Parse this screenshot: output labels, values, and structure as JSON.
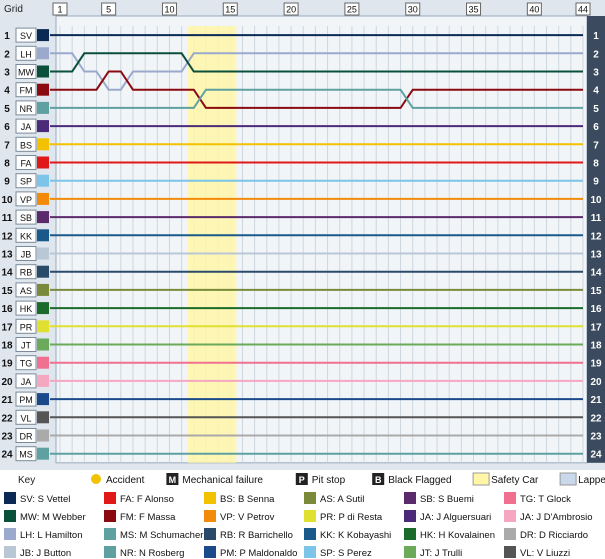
{
  "chart_data": {
    "type": "line",
    "description": "Lap chart: driver race position (1 = leader) by lap",
    "grid_header": "Grid",
    "key_label": "Key",
    "laps_total": 44,
    "lap_ticks": [
      1,
      5,
      10,
      15,
      20,
      25,
      30,
      35,
      40,
      44
    ],
    "positions": [
      1,
      2,
      3,
      4,
      5,
      6,
      7,
      8,
      9,
      10,
      11,
      12,
      13,
      14,
      15,
      16,
      17,
      18,
      19,
      20,
      21,
      22,
      23,
      24
    ],
    "safety_car_laps": [
      12,
      15
    ],
    "legend_items": [
      {
        "symbol": "sun",
        "label": "Accident"
      },
      {
        "symbol": "M",
        "label": "Mechanical failure"
      },
      {
        "symbol": "P",
        "label": "Pit stop"
      },
      {
        "symbol": "B",
        "label": "Black Flagged"
      },
      {
        "symbol": "safety",
        "label": "Safety Car"
      },
      {
        "symbol": "lapped",
        "label": "Lapped"
      }
    ],
    "drivers": [
      {
        "code": "SV",
        "name": "SV: S Vettel",
        "color": "#0a2a55",
        "grid": 1,
        "positions": [
          1,
          1,
          1,
          1,
          1,
          1,
          1,
          1,
          1,
          1,
          1,
          1,
          1,
          1,
          1,
          1,
          1,
          1,
          1,
          1,
          1,
          1,
          1,
          1,
          1,
          1,
          1,
          1,
          1,
          1,
          1,
          1,
          1,
          1,
          1,
          1,
          1,
          1,
          1,
          1,
          1,
          1,
          1,
          1
        ]
      },
      {
        "code": "LH",
        "name": "LH: L Hamilton",
        "color": "#9aa9cc",
        "grid": 2,
        "positions": [
          2,
          2,
          3,
          3,
          4,
          4,
          3,
          3,
          3,
          3,
          3,
          2,
          2,
          2,
          2,
          2,
          2,
          2,
          2,
          2,
          2,
          2,
          2,
          2,
          2,
          2,
          2,
          2,
          2,
          2,
          2,
          2,
          2,
          2,
          2,
          2,
          2,
          2,
          2,
          2,
          2,
          2,
          2,
          2
        ]
      },
      {
        "code": "MW",
        "name": "MW: M Webber",
        "color": "#0a4f3a",
        "grid": 3,
        "positions": [
          3,
          3,
          2,
          2,
          2,
          2,
          2,
          2,
          2,
          2,
          2,
          3,
          3,
          3,
          3,
          3,
          3,
          3,
          3,
          3,
          3,
          3,
          3,
          3,
          3,
          3,
          3,
          3,
          3,
          3,
          3,
          3,
          3,
          3,
          3,
          3,
          3,
          3,
          3,
          3,
          3,
          3,
          3,
          3
        ]
      },
      {
        "code": "FM",
        "name": "FM: F Massa",
        "color": "#8a0a10",
        "grid": 4,
        "positions": [
          4,
          4,
          4,
          4,
          3,
          3,
          4,
          4,
          4,
          4,
          4,
          4,
          5,
          5,
          5,
          5,
          5,
          5,
          5,
          5,
          5,
          5,
          5,
          5,
          5,
          5,
          5,
          5,
          5,
          4,
          4,
          4,
          4,
          4,
          4,
          4,
          4,
          4,
          4,
          4,
          4,
          4,
          4,
          4
        ]
      },
      {
        "code": "NR",
        "name": "NR: N Rosberg",
        "color": "#5fa0a0",
        "grid": 5,
        "positions": [
          5,
          5,
          5,
          5,
          5,
          5,
          5,
          5,
          5,
          5,
          5,
          5,
          4,
          4,
          4,
          4,
          4,
          4,
          4,
          4,
          4,
          4,
          4,
          4,
          4,
          4,
          4,
          4,
          4,
          5,
          5,
          5,
          5,
          5,
          5,
          5,
          5,
          5,
          5,
          5,
          5,
          5,
          5,
          5
        ]
      },
      {
        "code": "JA",
        "name": "JA: J Alguersuari",
        "color": "#4b2a7a",
        "grid": 6,
        "positions": [
          6,
          6,
          6,
          6,
          6,
          6,
          6,
          6,
          6,
          6,
          6,
          6,
          6,
          6,
          6,
          6,
          6,
          6,
          6,
          6,
          6,
          6,
          6,
          6,
          6,
          6,
          6,
          6,
          6,
          6,
          6,
          6,
          6,
          6,
          6,
          6,
          6,
          6,
          6,
          6,
          6,
          6,
          6,
          6
        ]
      },
      {
        "code": "BS",
        "name": "BS: B Senna",
        "color": "#f2c200",
        "grid": 7,
        "positions": [
          7,
          7,
          7,
          7,
          7,
          7,
          7,
          7,
          7,
          7,
          7,
          7,
          7,
          7,
          7,
          7,
          7,
          7,
          7,
          7,
          7,
          7,
          7,
          7,
          7,
          7,
          7,
          7,
          7,
          7,
          7,
          7,
          7,
          7,
          7,
          7,
          7,
          7,
          7,
          7,
          7,
          7,
          7,
          7
        ]
      },
      {
        "code": "FA",
        "name": "FA: F Alonso",
        "color": "#e01818",
        "grid": 8,
        "positions": [
          8,
          8,
          8,
          8,
          8,
          8,
          8,
          8,
          8,
          8,
          8,
          8,
          8,
          8,
          8,
          8,
          8,
          8,
          8,
          8,
          8,
          8,
          8,
          8,
          8,
          8,
          8,
          8,
          8,
          8,
          8,
          8,
          8,
          8,
          8,
          8,
          8,
          8,
          8,
          8,
          8,
          8,
          8,
          8
        ]
      },
      {
        "code": "SP",
        "name": "SP: S Perez",
        "color": "#7cc4e8",
        "grid": 9,
        "positions": [
          9,
          9,
          9,
          9,
          9,
          9,
          9,
          9,
          9,
          9,
          9,
          9,
          9,
          9,
          9,
          9,
          9,
          9,
          9,
          9,
          9,
          9,
          9,
          9,
          9,
          9,
          9,
          9,
          9,
          9,
          9,
          9,
          9,
          9,
          9,
          9,
          9,
          9,
          9,
          9,
          9,
          9,
          9,
          9
        ]
      },
      {
        "code": "VP",
        "name": "VP: V Petrov",
        "color": "#f28a0a",
        "grid": 10,
        "positions": [
          10,
          10,
          10,
          10,
          10,
          10,
          10,
          10,
          10,
          10,
          10,
          10,
          10,
          10,
          10,
          10,
          10,
          10,
          10,
          10,
          10,
          10,
          10,
          10,
          10,
          10,
          10,
          10,
          10,
          10,
          10,
          10,
          10,
          10,
          10,
          10,
          10,
          10,
          10,
          10,
          10,
          10,
          10,
          10
        ]
      },
      {
        "code": "SB",
        "name": "SB: S Buemi",
        "color": "#5a2a6a",
        "grid": 11,
        "positions": [
          11,
          11,
          11,
          11,
          11,
          11,
          11,
          11,
          11,
          11,
          11,
          11,
          11,
          11,
          11,
          11,
          11,
          11,
          11,
          11,
          11,
          11,
          11,
          11,
          11,
          11,
          11,
          11,
          11,
          11,
          11,
          11,
          11,
          11,
          11,
          11,
          11,
          11,
          11,
          11,
          11,
          11,
          11,
          11
        ]
      },
      {
        "code": "KK",
        "name": "KK: K Kobayashi",
        "color": "#1a5a8a",
        "grid": 12,
        "positions": [
          12,
          12,
          12,
          12,
          12,
          12,
          12,
          12,
          12,
          12,
          12,
          12,
          12,
          12,
          12,
          12,
          12,
          12,
          12,
          12,
          12,
          12,
          12,
          12,
          12,
          12,
          12,
          12,
          12,
          12,
          12,
          12,
          12,
          12,
          12,
          12,
          12,
          12,
          12,
          12,
          12,
          12,
          12,
          12
        ]
      },
      {
        "code": "JB",
        "name": "JB: J Button",
        "color": "#b9c7d6",
        "grid": 13,
        "positions": [
          13,
          13,
          13,
          13,
          13,
          13,
          13,
          13,
          13,
          13,
          13,
          13,
          13,
          13,
          13,
          13,
          13,
          13,
          13,
          13,
          13,
          13,
          13,
          13,
          13,
          13,
          13,
          13,
          13,
          13,
          13,
          13,
          13,
          13,
          13,
          13,
          13,
          13,
          13,
          13,
          13,
          13,
          13,
          13
        ]
      },
      {
        "code": "RB",
        "name": "RB: R Barrichello",
        "color": "#2a4a6a",
        "grid": 14,
        "positions": [
          14,
          14,
          14,
          14,
          14,
          14,
          14,
          14,
          14,
          14,
          14,
          14,
          14,
          14,
          14,
          14,
          14,
          14,
          14,
          14,
          14,
          14,
          14,
          14,
          14,
          14,
          14,
          14,
          14,
          14,
          14,
          14,
          14,
          14,
          14,
          14,
          14,
          14,
          14,
          14,
          14,
          14,
          14,
          14
        ]
      },
      {
        "code": "AS",
        "name": "AS: A Sutil",
        "color": "#7a8a3a",
        "grid": 15,
        "positions": [
          15,
          15,
          15,
          15,
          15,
          15,
          15,
          15,
          15,
          15,
          15,
          15,
          15,
          15,
          15,
          15,
          15,
          15,
          15,
          15,
          15,
          15,
          15,
          15,
          15,
          15,
          15,
          15,
          15,
          15,
          15,
          15,
          15,
          15,
          15,
          15,
          15,
          15,
          15,
          15,
          15,
          15,
          15,
          15
        ]
      },
      {
        "code": "HK",
        "name": "HK: H Kovalainen",
        "color": "#1a6a2a",
        "grid": 16,
        "positions": [
          16,
          16,
          16,
          16,
          16,
          16,
          16,
          16,
          16,
          16,
          16,
          16,
          16,
          16,
          16,
          16,
          16,
          16,
          16,
          16,
          16,
          16,
          16,
          16,
          16,
          16,
          16,
          16,
          16,
          16,
          16,
          16,
          16,
          16,
          16,
          16,
          16,
          16,
          16,
          16,
          16,
          16,
          16,
          16
        ]
      },
      {
        "code": "PR",
        "name": "PR: P di Resta",
        "color": "#e0e030",
        "grid": 17,
        "positions": [
          17,
          17,
          17,
          17,
          17,
          17,
          17,
          17,
          17,
          17,
          17,
          17,
          17,
          17,
          17,
          17,
          17,
          17,
          17,
          17,
          17,
          17,
          17,
          17,
          17,
          17,
          17,
          17,
          17,
          17,
          17,
          17,
          17,
          17,
          17,
          17,
          17,
          17,
          17,
          17,
          17,
          17,
          17,
          17
        ]
      },
      {
        "code": "JT",
        "name": "JT: J Trulli",
        "color": "#6aaa5a",
        "grid": 18,
        "positions": [
          18,
          18,
          18,
          18,
          18,
          18,
          18,
          18,
          18,
          18,
          18,
          18,
          18,
          18,
          18,
          18,
          18,
          18,
          18,
          18,
          18,
          18,
          18,
          18,
          18,
          18,
          18,
          18,
          18,
          18,
          18,
          18,
          18,
          18,
          18,
          18,
          18,
          18,
          18,
          18,
          18,
          18,
          18,
          18
        ]
      },
      {
        "code": "TG",
        "name": "TG: T Glock",
        "color": "#f07090",
        "grid": 19,
        "positions": [
          19,
          19,
          19,
          19,
          19,
          19,
          19,
          19,
          19,
          19,
          19,
          19,
          19,
          19,
          19,
          19,
          19,
          19,
          19,
          19,
          19,
          19,
          19,
          19,
          19,
          19,
          19,
          19,
          19,
          19,
          19,
          19,
          19,
          19,
          19,
          19,
          19,
          19,
          19,
          19,
          19,
          19,
          19,
          19
        ]
      },
      {
        "code": "JA2",
        "name": "JA: J D'Ambrosio",
        "color": "#f5a6c0",
        "grid": 20,
        "positions": [
          20,
          20,
          20,
          20,
          20,
          20,
          20,
          20,
          20,
          20,
          20,
          20,
          20,
          20,
          20,
          20,
          20,
          20,
          20,
          20,
          20,
          20,
          20,
          20,
          20,
          20,
          20,
          20,
          20,
          20,
          20,
          20,
          20,
          20,
          20,
          20,
          20,
          20,
          20,
          20,
          20,
          20,
          20,
          20
        ]
      },
      {
        "code": "PM",
        "name": "PM: P Maldonaldo",
        "color": "#1a4a8a",
        "grid": 21,
        "positions": [
          21,
          21,
          21,
          21,
          21,
          21,
          21,
          21,
          21,
          21,
          21,
          21,
          21,
          21,
          21,
          21,
          21,
          21,
          21,
          21,
          21,
          21,
          21,
          21,
          21,
          21,
          21,
          21,
          21,
          21,
          21,
          21,
          21,
          21,
          21,
          21,
          21,
          21,
          21,
          21,
          21,
          21,
          21,
          21
        ]
      },
      {
        "code": "VL",
        "name": "VL: V Liuzzi",
        "color": "#555555",
        "grid": 22,
        "positions": [
          22,
          22,
          22,
          22,
          22,
          22,
          22,
          22,
          22,
          22,
          22,
          22,
          22,
          22,
          22,
          22,
          22,
          22,
          22,
          22,
          22,
          22,
          22,
          22,
          22,
          22,
          22,
          22,
          22,
          22,
          22,
          22,
          22,
          22,
          22,
          22,
          22,
          22,
          22,
          22,
          22,
          22,
          22,
          22
        ]
      },
      {
        "code": "DR",
        "name": "DR: D Ricciardo",
        "color": "#aaaaaa",
        "grid": 23,
        "positions": [
          23,
          23,
          23,
          23,
          23,
          23,
          23,
          23,
          23,
          23,
          23,
          23,
          23,
          23,
          23,
          23,
          23,
          23,
          23,
          23,
          23,
          23,
          23,
          23,
          23,
          23,
          23,
          23,
          23,
          23,
          23,
          23,
          23,
          23,
          23,
          23,
          23,
          23,
          23,
          23,
          23,
          23,
          23,
          23
        ]
      },
      {
        "code": "MS",
        "name": "MS: M Schumacher",
        "color": "#5fa0a0",
        "grid": 24,
        "positions": [
          24,
          24,
          24,
          24,
          24,
          24,
          24,
          24,
          24,
          24,
          24,
          24,
          24,
          24,
          24,
          24,
          24,
          24,
          24,
          24,
          24,
          24,
          24,
          24,
          24,
          24,
          24,
          24,
          24,
          24,
          24,
          24,
          24,
          24,
          24,
          24,
          24,
          24,
          24,
          24,
          24,
          24,
          24,
          24
        ]
      }
    ],
    "legend_order": [
      "SV",
      "FA",
      "BS",
      "AS",
      "SB",
      "TG",
      "MW",
      "FM",
      "VP",
      "PR",
      "JA",
      "JA2",
      "LH",
      "MS",
      "RB",
      "KK",
      "HK",
      "DR",
      "JB",
      "NR",
      "PM",
      "SP",
      "JT",
      "VL"
    ]
  }
}
